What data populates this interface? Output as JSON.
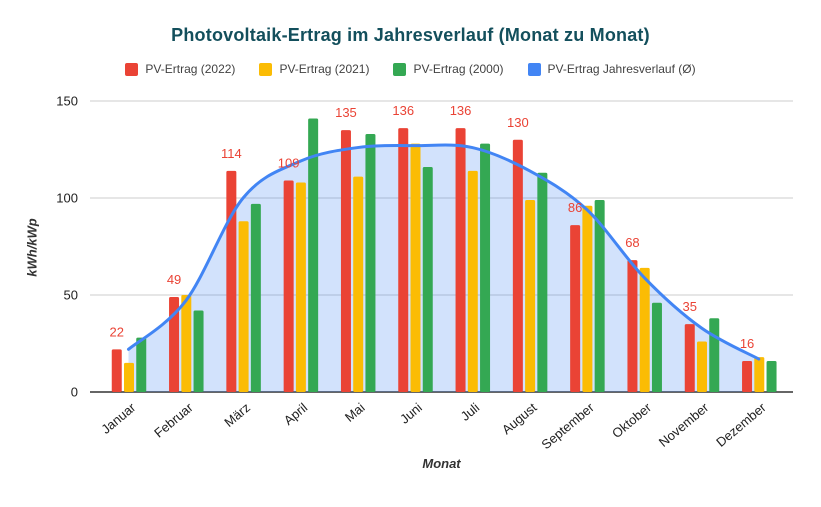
{
  "window": {
    "background": "#ffffff"
  },
  "chart_data": {
    "type": "bar",
    "subtype": "grouped-bars-with-smooth-area-line-overlay",
    "title": "Photovoltaik-Ertrag im Jahresverlauf (Monat zu Monat)",
    "title_color": "#134F5C",
    "xlabel": "Monat",
    "ylabel": "kWh/kWp",
    "ylim": [
      0,
      150
    ],
    "yticks": [
      0,
      50,
      100,
      150
    ],
    "grid": true,
    "grid_color": "#cccccc",
    "axis_line_color": "#333333",
    "tick_label_color": "#212121",
    "axis_title_color": "#333333",
    "x_tick_rotation": -40,
    "legend_position": "top",
    "legend_text_color": "#424242",
    "categories": [
      "Januar",
      "Februar",
      "März",
      "April",
      "Mai",
      "Juni",
      "Juli",
      "August",
      "September",
      "Oktober",
      "November",
      "Dezember"
    ],
    "series": [
      {
        "name": "PV-Ertrag (2022)",
        "type": "bar",
        "color": "#EA4335",
        "values": [
          22,
          49,
          114,
          109,
          135,
          136,
          136,
          130,
          86,
          68,
          35,
          16
        ],
        "show_value_labels": true,
        "value_label_color": "#EA4335"
      },
      {
        "name": "PV-Ertrag (2021)",
        "type": "bar",
        "color": "#FBBC04",
        "values": [
          15,
          50,
          88,
          108,
          111,
          128,
          114,
          99,
          96,
          64,
          26,
          18
        ]
      },
      {
        "name": "PV-Ertrag (2000)",
        "type": "bar",
        "color": "#34A853",
        "values": [
          28,
          42,
          97,
          141,
          133,
          116,
          128,
          113,
          99,
          46,
          38,
          16
        ]
      },
      {
        "name": "PV-Ertrag Jahresverlauf (Ø)",
        "type": "line",
        "smooth": true,
        "color": "#4285F4",
        "area_fill": "rgba(66,133,244,0.24)",
        "values": [
          22,
          47,
          100,
          119,
          126,
          127,
          126,
          114,
          94,
          59,
          33,
          17
        ]
      }
    ]
  }
}
